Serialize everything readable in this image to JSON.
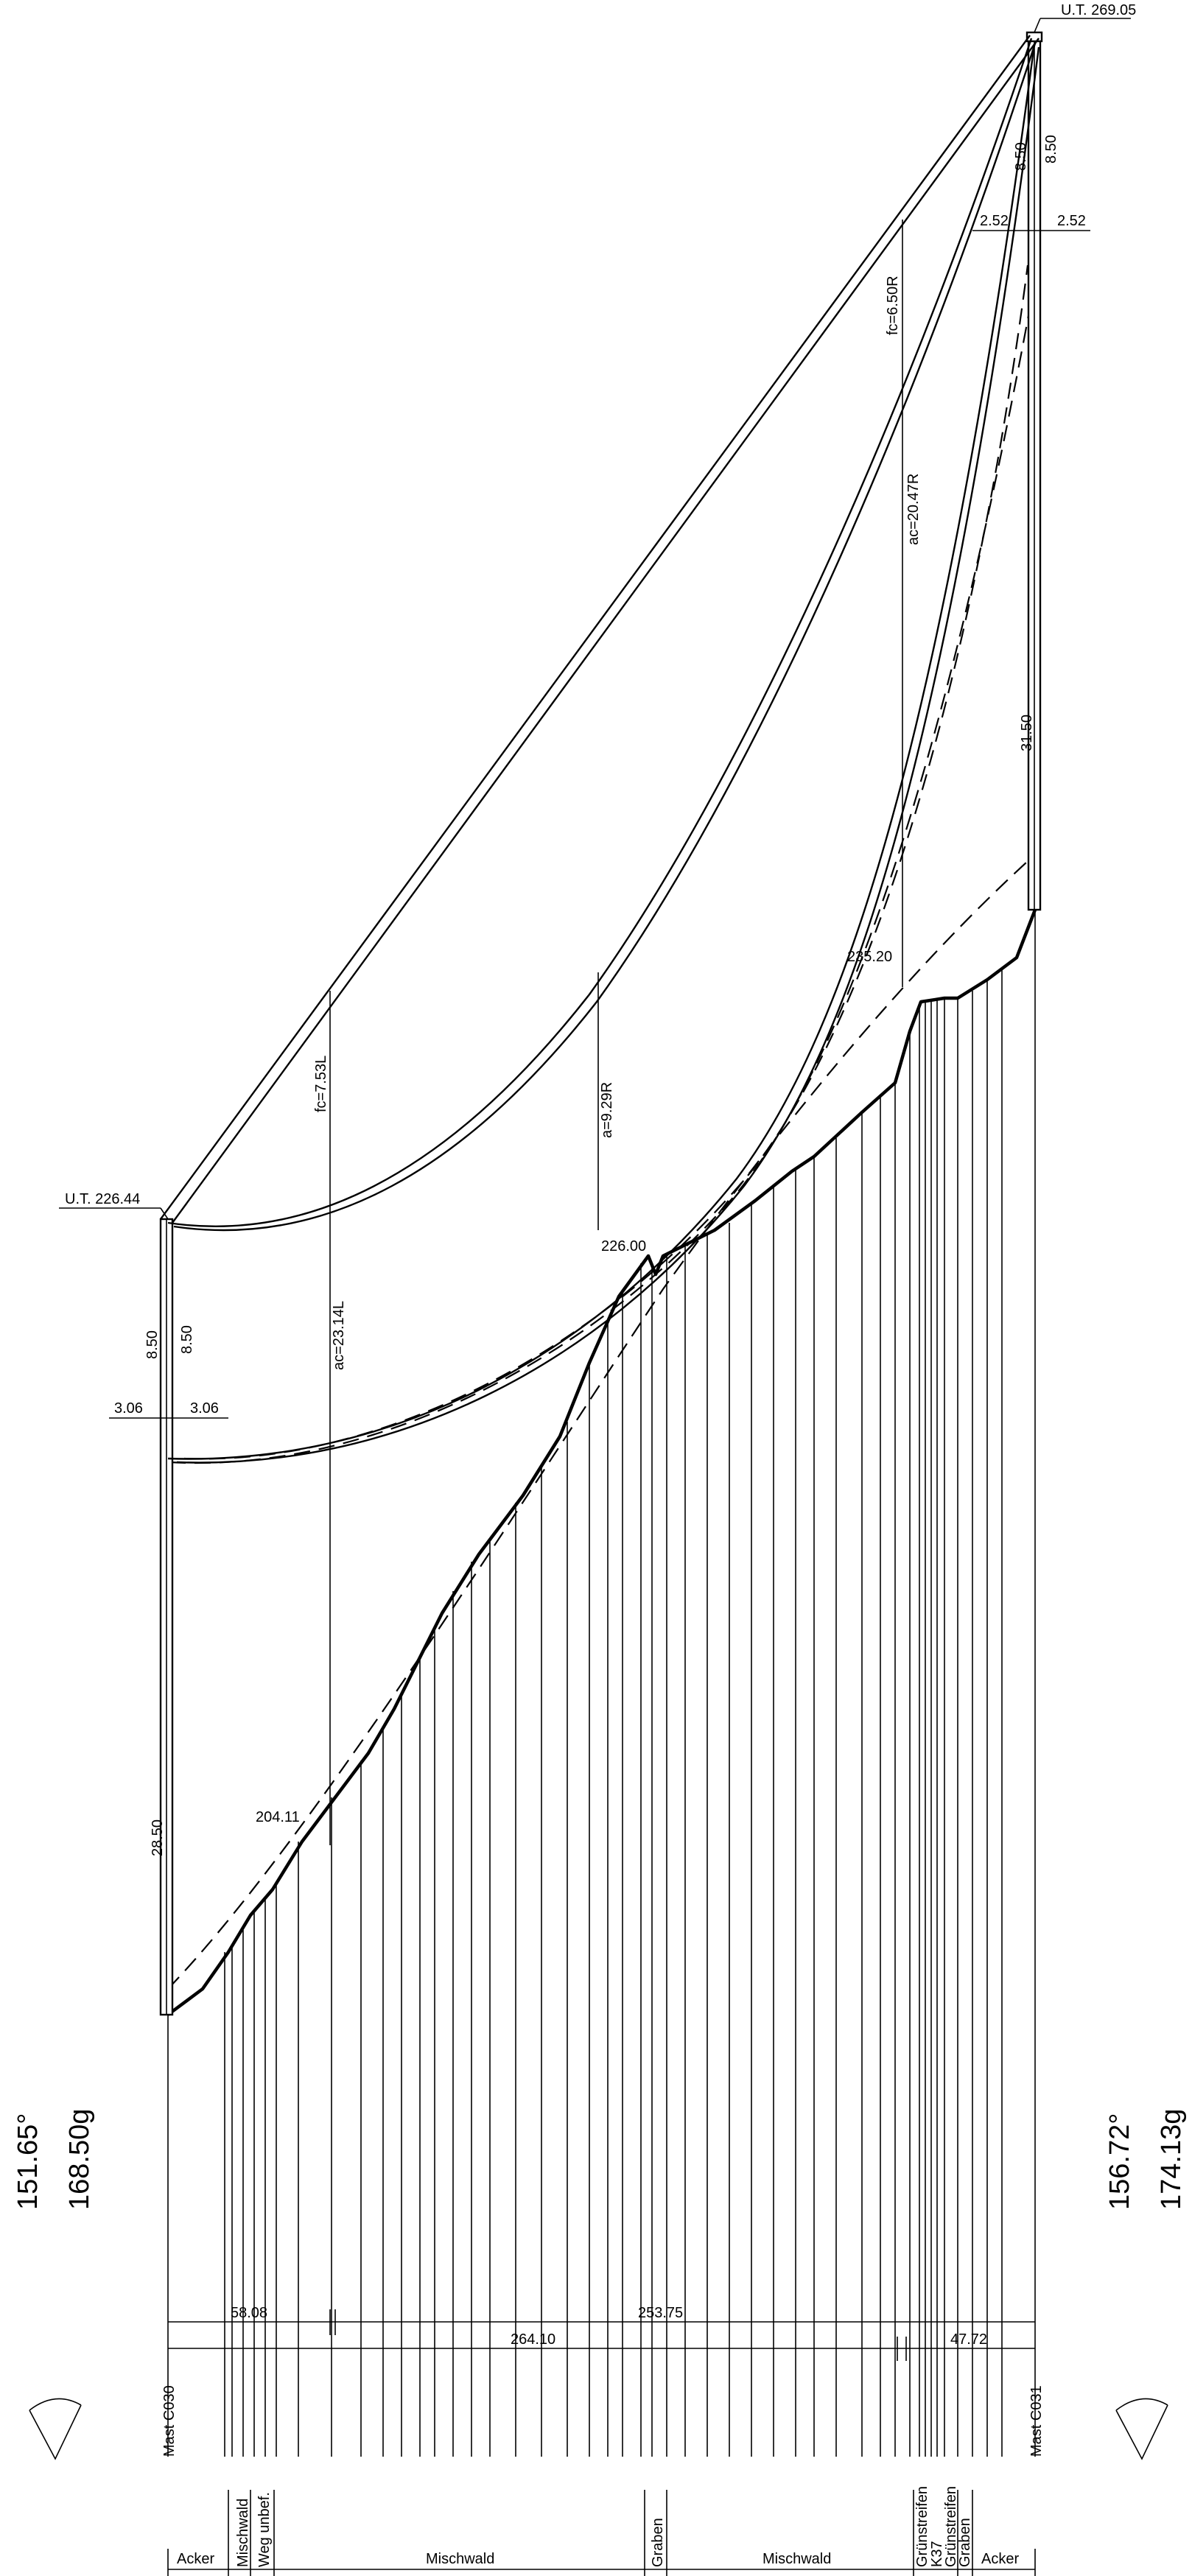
{
  "towers": {
    "left": {
      "name": "Mast C030",
      "ut_label": "U.T. 226.44",
      "angle_deg": "151.65°",
      "angle_gon": "168.50g",
      "height": "28.50",
      "crossarm_h": "3.06",
      "crossarm_h2": "3.06",
      "crossarm_v": "8.50",
      "crossarm_v2": "8.50"
    },
    "right": {
      "name": "Mast C031",
      "ut_label": "U.T. 269.05",
      "angle_deg": "156.72°",
      "angle_gon": "174.13g",
      "height": "31.50",
      "crossarm_h": "2.52",
      "crossarm_h2": "2.52",
      "crossarm_v": "8.50",
      "crossarm_v2": "8.50"
    }
  },
  "annotations": {
    "fc_left": "fc=7.53L",
    "fc_right": "fc=6.50R",
    "ac_left": "ac=23.14L",
    "ac_right": "ac=20.47R",
    "a_mid": "a=9.29R",
    "elev_left": "204.11",
    "elev_mid": "226.00",
    "elev_right": "235.20"
  },
  "dimensions": {
    "d1": "58.08",
    "d2": "253.75",
    "d3": "264.10",
    "d4": "47.72"
  },
  "land_use": {
    "segments": [
      "Acker",
      "Mischwald",
      "Weg unbef.",
      "Mischwald",
      "Graben",
      "Mischwald",
      "Grünstreifen",
      "K37",
      "Grünstreifen",
      "Graben",
      "Acker"
    ]
  },
  "colors": {
    "vegetation_conflict": "#ff0000",
    "vegetation_clear": "#22e03a",
    "lines": "#000000"
  }
}
